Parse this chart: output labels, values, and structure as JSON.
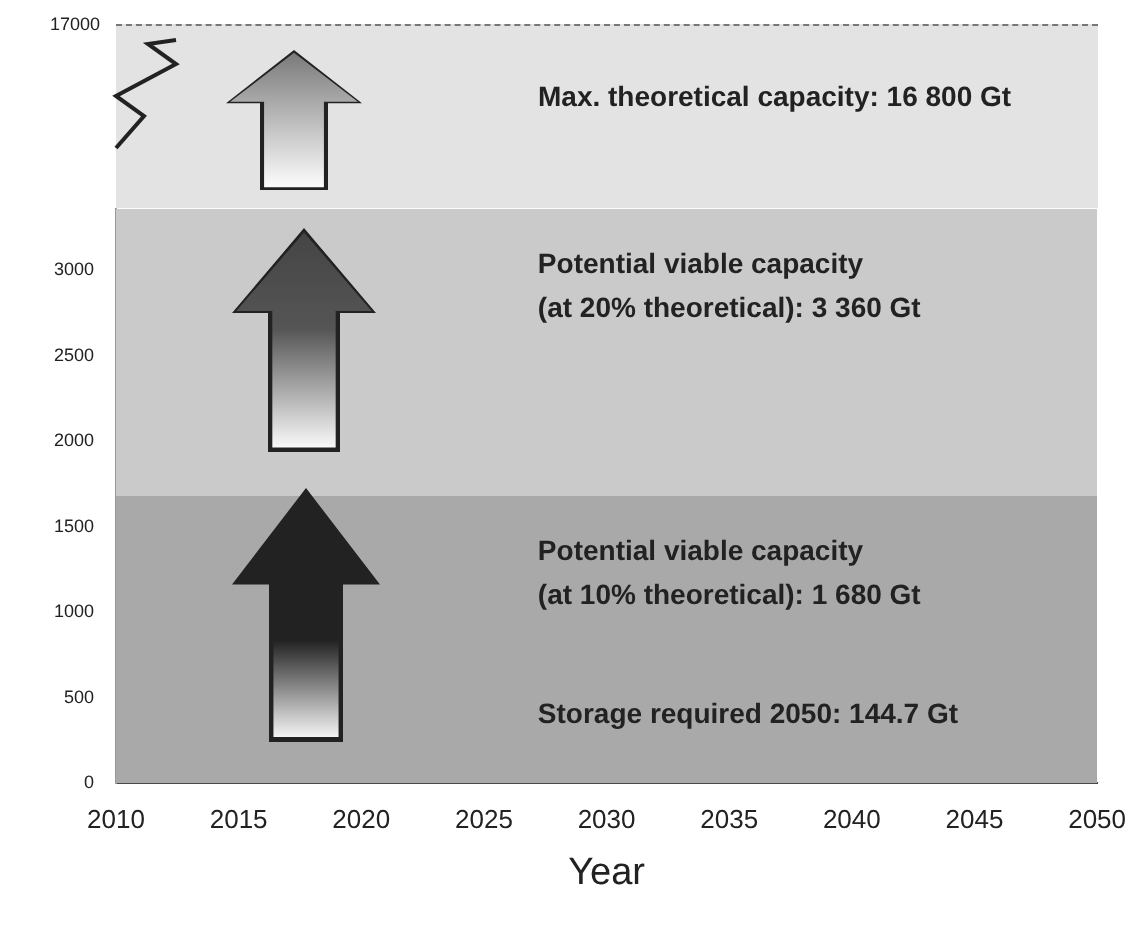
{
  "chart_data": [
    {
      "type": "other",
      "annotations": [
        "17000",
        "Max. theoretical capacity: 16 800 Gt"
      ]
    },
    {
      "type": "scatter",
      "xlabel": "Year",
      "xlim": [
        2010,
        2050
      ],
      "xticks": [
        2010,
        2015,
        2020,
        2025,
        2030,
        2035,
        2040,
        2045,
        2050
      ],
      "ylim": [
        0,
        3360
      ],
      "yticks": [
        0,
        500,
        1000,
        1500,
        2000,
        2500,
        3000
      ],
      "bands": [
        {
          "axis": "y",
          "from": 0,
          "to": 1680,
          "label": "Potential viable capacity\n(at 10% theoretical): 1 680 Gt",
          "color": "#a9a9a9"
        },
        {
          "axis": "y",
          "from": 1680,
          "to": 3360,
          "label": "Potential viable capacity\n(at 20% theoretical): 3 360 Gt",
          "color": "#cacaca"
        }
      ],
      "annotations": [
        "Storage required 2050: 144.7 Gt"
      ]
    }
  ]
}
